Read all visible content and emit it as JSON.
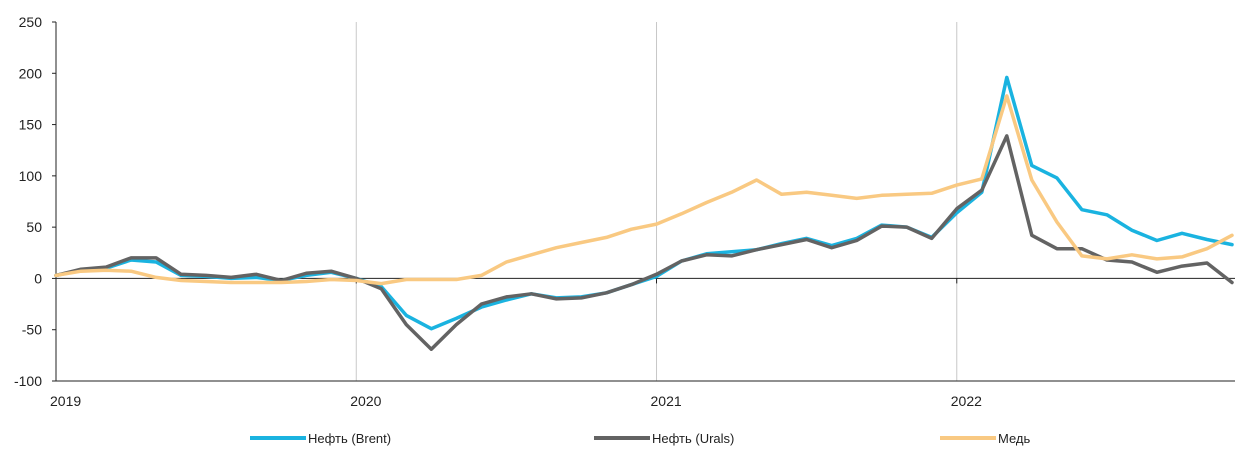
{
  "chart_data": {
    "type": "line",
    "title": "",
    "xlabel": "",
    "ylabel": "",
    "ylim": [
      -100,
      250
    ],
    "yticks": [
      -100,
      -50,
      0,
      50,
      100,
      150,
      200,
      250
    ],
    "xlim": [
      0,
      47
    ],
    "xticks": [
      {
        "x": 0,
        "label": "2019"
      },
      {
        "x": 12,
        "label": "2020"
      },
      {
        "x": 24,
        "label": "2021"
      },
      {
        "x": 36,
        "label": "2022"
      }
    ],
    "grid": "vertical-at-year-boundaries",
    "legend": "bottom",
    "x": [
      0,
      1,
      2,
      3,
      4,
      5,
      6,
      7,
      8,
      9,
      10,
      11,
      12,
      13,
      14,
      15,
      16,
      17,
      18,
      19,
      20,
      21,
      22,
      23,
      24,
      25,
      26,
      27,
      28,
      29,
      30,
      31,
      32,
      33,
      34,
      35,
      36,
      37,
      38,
      39,
      40,
      41,
      42,
      43,
      44,
      45,
      46,
      47
    ],
    "series": [
      {
        "name": "Нефть (Brent)",
        "color": "#1ab3e0",
        "values": [
          3,
          8,
          10,
          18,
          16,
          3,
          2,
          0,
          1,
          -2,
          3,
          6,
          0,
          -8,
          -36,
          -49,
          -39,
          -28,
          -21,
          -15,
          -19,
          -18,
          -14,
          -6,
          2,
          17,
          24,
          26,
          28,
          34,
          39,
          32,
          39,
          52,
          50,
          40,
          64,
          84,
          196,
          110,
          98,
          67,
          62,
          47,
          37,
          44,
          38,
          33
        ]
      },
      {
        "name": "Нефть (Urals)",
        "color": "#636363",
        "values": [
          3,
          9,
          11,
          20,
          20,
          4,
          3,
          1,
          4,
          -2,
          5,
          7,
          0,
          -10,
          -45,
          -69,
          -45,
          -25,
          -18,
          -15,
          -20,
          -19,
          -14,
          -6,
          4,
          17,
          23,
          22,
          28,
          33,
          38,
          30,
          37,
          51,
          50,
          39,
          68,
          86,
          139,
          42,
          29,
          29,
          18,
          16,
          6,
          12,
          15,
          -4
        ]
      },
      {
        "name": "Медь",
        "color": "#f9c982",
        "values": [
          3,
          7,
          8,
          7,
          1,
          -2,
          -3,
          -4,
          -4,
          -4,
          -3,
          -1,
          -2,
          -5,
          -1,
          -1,
          -1,
          3,
          16,
          23,
          30,
          35,
          40,
          48,
          53,
          63,
          74,
          84,
          96,
          82,
          84,
          81,
          78,
          81,
          82,
          83,
          91,
          97,
          178,
          96,
          55,
          22,
          19,
          23,
          19,
          21,
          29,
          42
        ]
      }
    ]
  }
}
